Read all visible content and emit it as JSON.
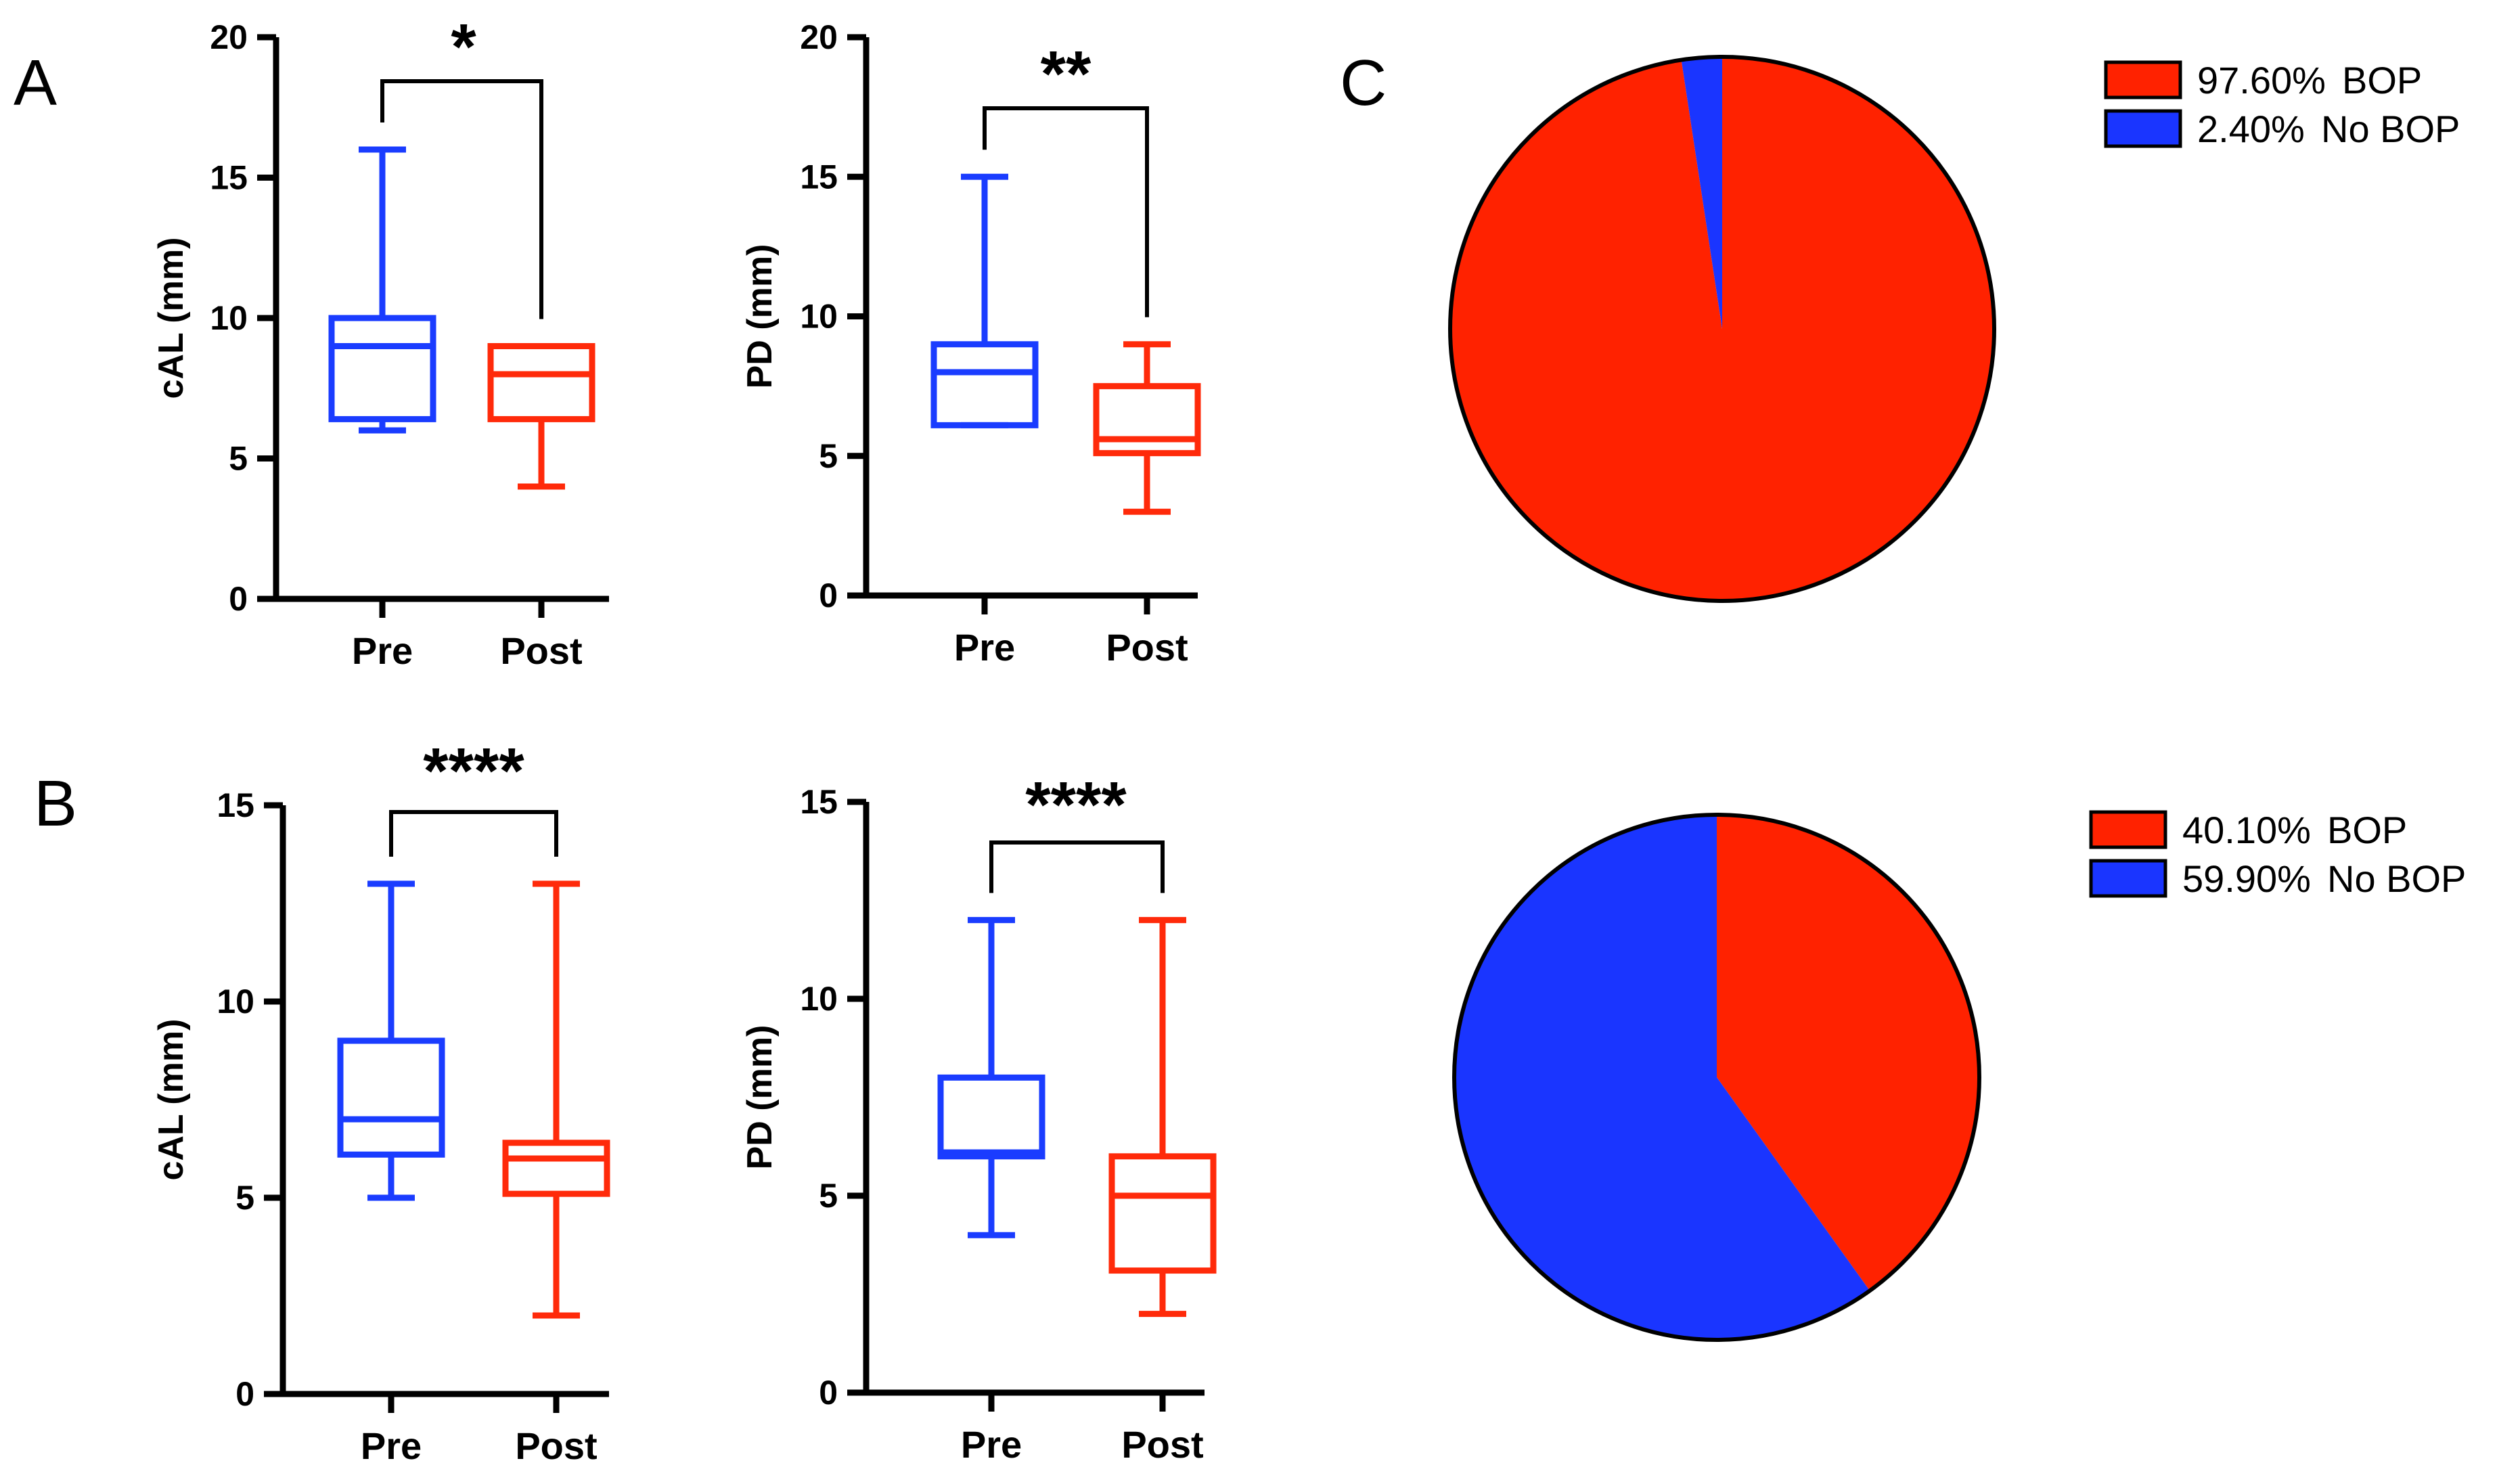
{
  "panel_labels": [
    "A",
    "B",
    "C"
  ],
  "colors": {
    "pre": "#1a3cff",
    "post": "#ff2a0a",
    "bop": "#ff2200",
    "no_bop": "#1a35ff"
  },
  "chart_data": [
    {
      "type": "box",
      "panel": "A",
      "ylabel": "cAL (mm)",
      "ylim": [
        0,
        20
      ],
      "yticks": [
        0,
        5,
        10,
        15,
        20
      ],
      "categories": [
        "Pre",
        "Post"
      ],
      "boxes": [
        {
          "name": "Pre",
          "min": 6,
          "q1": 6.4,
          "median": 9,
          "q3": 10,
          "max": 16
        },
        {
          "name": "Post",
          "min": 4,
          "q1": 6.4,
          "median": 8,
          "q3": 9,
          "max": 9
        }
      ],
      "significance": "*"
    },
    {
      "type": "box",
      "panel": "A",
      "ylabel": "PD (mm)",
      "ylim": [
        0,
        20
      ],
      "yticks": [
        0,
        5,
        10,
        15,
        20
      ],
      "categories": [
        "Pre",
        "Post"
      ],
      "boxes": [
        {
          "name": "Pre",
          "min": 6.1,
          "q1": 6.1,
          "median": 8,
          "q3": 9,
          "max": 15
        },
        {
          "name": "Post",
          "min": 3,
          "q1": 5.1,
          "median": 5.6,
          "q3": 7.5,
          "max": 9
        }
      ],
      "significance": "**"
    },
    {
      "type": "box",
      "panel": "B",
      "ylabel": "cAL (mm)",
      "ylim": [
        0,
        15
      ],
      "yticks": [
        0,
        5,
        10,
        15
      ],
      "categories": [
        "Pre",
        "Post"
      ],
      "boxes": [
        {
          "name": "Pre",
          "min": 5,
          "q1": 6.1,
          "median": 7,
          "q3": 9,
          "max": 13
        },
        {
          "name": "Post",
          "min": 2,
          "q1": 5.1,
          "median": 6,
          "q3": 6.4,
          "max": 13
        }
      ],
      "significance": "****"
    },
    {
      "type": "box",
      "panel": "B",
      "ylabel": "PD (mm)",
      "ylim": [
        0,
        15
      ],
      "yticks": [
        0,
        5,
        10,
        15
      ],
      "categories": [
        "Pre",
        "Post"
      ],
      "boxes": [
        {
          "name": "Pre",
          "min": 4,
          "q1": 6,
          "median": 6.1,
          "q3": 8,
          "max": 12
        },
        {
          "name": "Post",
          "min": 2,
          "q1": 3.1,
          "median": 5,
          "q3": 6,
          "max": 12
        }
      ],
      "significance": "****"
    },
    {
      "type": "pie",
      "panel": "C",
      "slices": [
        {
          "label": "BOP",
          "percent_label": "97.60%",
          "value": 97.6
        },
        {
          "label": "No BOP",
          "percent_label": "2.40%",
          "value": 2.4
        }
      ],
      "legend": "top-right"
    },
    {
      "type": "pie",
      "panel": "C",
      "slices": [
        {
          "label": "BOP",
          "percent_label": "40.10%",
          "value": 40.1
        },
        {
          "label": "No BOP",
          "percent_label": "59.90%",
          "value": 59.9
        }
      ],
      "legend": "top-right"
    }
  ]
}
